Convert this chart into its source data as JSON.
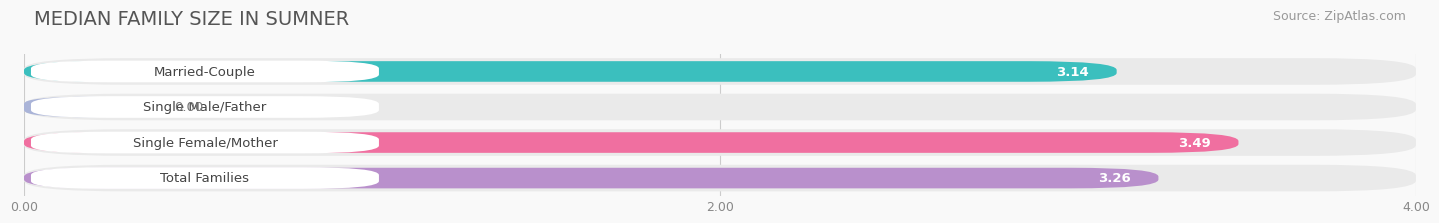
{
  "title": "MEDIAN FAMILY SIZE IN SUMNER",
  "source": "Source: ZipAtlas.com",
  "categories": [
    "Married-Couple",
    "Single Male/Father",
    "Single Female/Mother",
    "Total Families"
  ],
  "values": [
    3.14,
    0.0,
    3.49,
    3.26
  ],
  "bar_colors": [
    "#3bbfbe",
    "#aab4d8",
    "#f06fa0",
    "#b990cc"
  ],
  "bar_bg_color": "#eaeaea",
  "xlim": [
    0,
    4.0
  ],
  "xticks": [
    0.0,
    2.0,
    4.0
  ],
  "xtick_labels": [
    "0.00",
    "2.00",
    "4.00"
  ],
  "label_text_color": "#444444",
  "value_text_color": "#ffffff",
  "title_fontsize": 14,
  "source_fontsize": 9,
  "label_fontsize": 9.5,
  "value_fontsize": 9.5,
  "background_color": "#f9f9f9"
}
